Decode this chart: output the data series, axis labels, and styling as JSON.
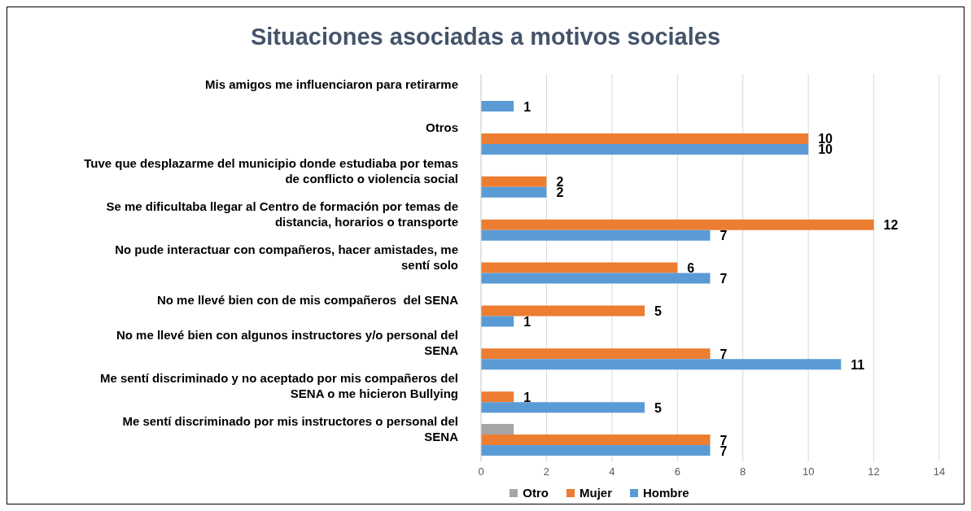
{
  "chart_data": {
    "type": "bar",
    "orientation": "horizontal",
    "title": "Situaciones asociadas a motivos sociales",
    "categories": [
      "Mis amigos me influenciaron para retirarme",
      "Otros",
      "Tuve que desplazarme del municipio donde estudiaba por temas de conflicto o violencia social",
      "Se me dificultaba llegar al Centro de formación por temas de distancia, horarios o transporte",
      "No pude interactuar con compañeros, hacer amistades, me sentí solo",
      "No me llevé bien con de mis compañeros  del SENA",
      "No me llevé bien con algunos instructores y/o personal del SENA",
      "Me sentí discriminado y no aceptado por mis compañeros del SENA o me hicieron Bullying",
      "Me sentí discriminado por mis instructores o personal del SENA"
    ],
    "series": [
      {
        "name": "Otro",
        "color": "#a5a5a5",
        "values": [
          null,
          null,
          null,
          null,
          null,
          null,
          null,
          null,
          1
        ],
        "value_labels": [
          null,
          null,
          null,
          null,
          null,
          null,
          null,
          null,
          null
        ]
      },
      {
        "name": "Mujer",
        "color": "#ed7d31",
        "values": [
          null,
          10,
          2,
          12,
          6,
          5,
          7,
          1,
          7
        ],
        "value_labels": [
          null,
          "10",
          "2",
          "12",
          "6",
          "5",
          "7",
          "1",
          "7"
        ]
      },
      {
        "name": "Hombre",
        "color": "#5b9bd5",
        "values": [
          1,
          10,
          2,
          7,
          7,
          1,
          11,
          5,
          7
        ],
        "value_labels": [
          "1",
          "10",
          "2",
          "7",
          "7",
          "1",
          "11",
          "5",
          "7"
        ]
      }
    ],
    "xlim": [
      0,
      14
    ],
    "xticks": [
      0,
      2,
      4,
      6,
      8,
      10,
      12,
      14
    ],
    "grid": "x",
    "legend": "bottom"
  }
}
